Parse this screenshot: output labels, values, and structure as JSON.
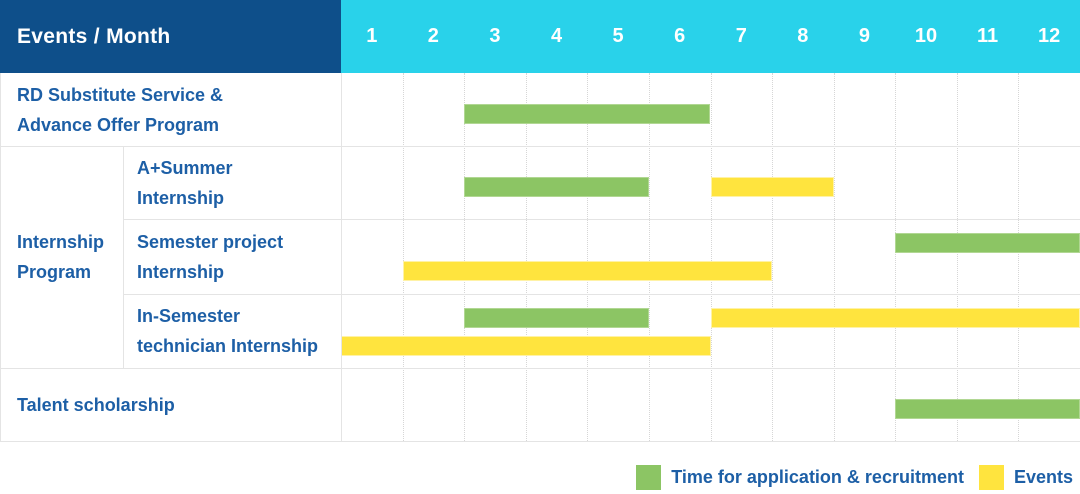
{
  "colors": {
    "header_navy": "#0e4f8a",
    "header_cyan": "#29d2ea",
    "bar_green": "#8cc564",
    "bar_yellow": "#ffe43e",
    "label_blue": "#1d5fa6",
    "grid_line": "#e4e4e4"
  },
  "table": {
    "corner_title": "Events / Month",
    "months": [
      "1",
      "2",
      "3",
      "4",
      "5",
      "6",
      "7",
      "8",
      "9",
      "10",
      "11",
      "12"
    ],
    "row_labels": [
      {
        "lines": [
          "RD Substitute Service &",
          "Advance Offer Program"
        ]
      },
      {
        "lines": [
          "A+Summer",
          "Internship"
        ]
      },
      {
        "lines": [
          "Semester project",
          "Internship"
        ]
      },
      {
        "lines": [
          "In-Semester",
          "technician Internship"
        ]
      },
      {
        "lines": [
          "Talent scholarship"
        ]
      }
    ],
    "group_label": {
      "lines": [
        "Internship",
        "Program"
      ]
    }
  },
  "chart_data": {
    "type": "gantt",
    "unit": "month",
    "x_ticks": [
      "1",
      "2",
      "3",
      "4",
      "5",
      "6",
      "7",
      "8",
      "9",
      "10",
      "11",
      "12"
    ],
    "x_range": [
      1,
      12
    ],
    "rows": [
      {
        "label": "RD Substitute Service & Advance Offer Program",
        "group": null,
        "bars": [
          {
            "kind": "application",
            "start_month": 3,
            "end_month": 6,
            "lane": "single"
          }
        ]
      },
      {
        "label": "A+Summer Internship",
        "group": "Internship Program",
        "bars": [
          {
            "kind": "application",
            "start_month": 3,
            "end_month": 5,
            "lane": "single"
          },
          {
            "kind": "event",
            "start_month": 7,
            "end_month": 8,
            "lane": "single"
          }
        ]
      },
      {
        "label": "Semester project Internship",
        "group": "Internship Program",
        "bars": [
          {
            "kind": "application",
            "start_month": 10,
            "end_month": 12,
            "lane": "top"
          },
          {
            "kind": "event",
            "start_month": 2,
            "end_month": 7,
            "lane": "bottom"
          }
        ]
      },
      {
        "label": "In-Semester technician Internship",
        "group": "Internship Program",
        "bars": [
          {
            "kind": "application",
            "start_month": 3,
            "end_month": 5,
            "lane": "top"
          },
          {
            "kind": "event",
            "start_month": 7,
            "end_month": 12,
            "lane": "top"
          },
          {
            "kind": "event",
            "start_month": 1,
            "end_month": 6,
            "lane": "bottom"
          }
        ]
      },
      {
        "label": "Talent scholarship",
        "group": null,
        "bars": [
          {
            "kind": "application",
            "start_month": 10,
            "end_month": 12,
            "lane": "single"
          }
        ]
      }
    ],
    "legend": [
      {
        "kind": "application",
        "label": "Time for application & recruitment",
        "color": "#8cc564"
      },
      {
        "kind": "event",
        "label": "Events",
        "color": "#ffe43e"
      }
    ],
    "legend_position": "bottom-right"
  }
}
